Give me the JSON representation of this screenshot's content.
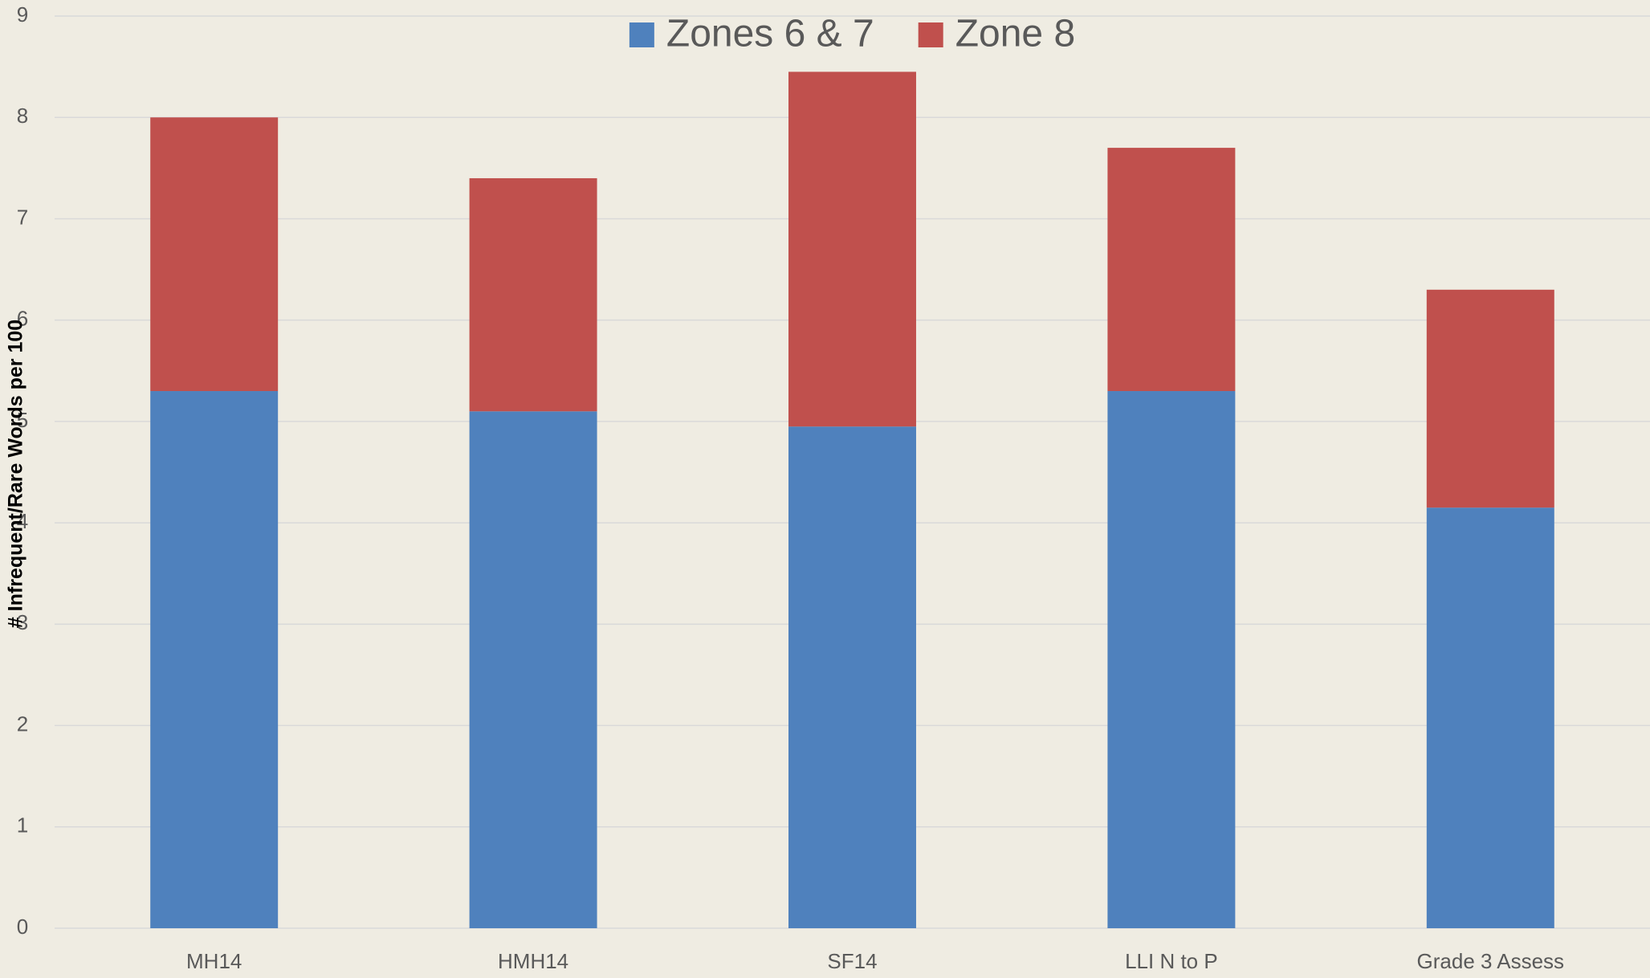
{
  "chart_data": {
    "type": "stacked_bar",
    "y_label": "# Infrequent/Rare Words per 100",
    "categories": [
      "MH14",
      "HMH14",
      "SF14",
      "LLI N to P",
      "Grade 3 Assess"
    ],
    "series": [
      {
        "name": "Zones 6 & 7",
        "color": "#4f81bd",
        "values": [
          5.3,
          5.1,
          4.95,
          5.3,
          4.15
        ]
      },
      {
        "name": "Zone 8",
        "color": "#c0504d",
        "values": [
          2.7,
          2.3,
          3.5,
          2.4,
          2.15
        ]
      }
    ],
    "ylim": [
      0,
      9
    ],
    "yticks": [
      0,
      1,
      2,
      3,
      4,
      5,
      6,
      7,
      8,
      9
    ],
    "grid": true,
    "legend": "top"
  }
}
